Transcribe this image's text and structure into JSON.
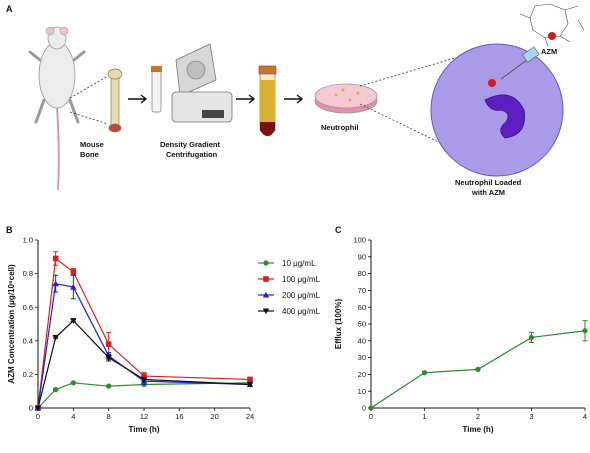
{
  "panels": {
    "a": {
      "letter": "A",
      "labels": {
        "mouse_bone": [
          "Mouse",
          "Bone"
        ],
        "density_gradient": [
          "Density Gradient",
          "Centrifugation"
        ],
        "neutrophil": "Neutrophil",
        "loaded": [
          "Neutrophil Loaded",
          "with AZM"
        ],
        "azm": "AZM"
      },
      "colors": {
        "bone": "#e8d9b0",
        "tube_cap": "#c8742a",
        "tube_fill": "#d9b234",
        "blood": "#7a1010",
        "dish": "#e88fa6",
        "cell": "#a99be8",
        "nucleus": "#5b1fc2",
        "azm_dot": "#d11b1b"
      },
      "icons": [
        "mouse-icon",
        "bone-icon",
        "centrifuge-icon",
        "tube-icon",
        "petri-dish-icon",
        "neutrophil-icon",
        "molecule-icon",
        "needle-icon"
      ]
    },
    "b": {
      "letter": "B"
    },
    "c": {
      "letter": "C"
    }
  },
  "chart_data": [
    {
      "id": "b",
      "type": "line",
      "xlabel": "Time (h)",
      "ylabel": "AZM Concentration (μg/10⁶cell)",
      "x_ticks": [
        0,
        4,
        8,
        12,
        16,
        20,
        24
      ],
      "y_ticks": [
        0.0,
        0.2,
        0.4,
        0.6,
        0.8,
        1.0
      ],
      "y_tick_labels": [
        "0",
        "0.2",
        "0.4",
        "0.6",
        "0.8",
        "1.0"
      ],
      "xlim": [
        0,
        24
      ],
      "ylim": [
        0,
        1.0
      ],
      "grid": false,
      "legend_position": "top-right",
      "series": [
        {
          "name": "10 μg/mL",
          "color": "#2e8b2e",
          "marker": "circle",
          "x": [
            0,
            2,
            4,
            8,
            12,
            24
          ],
          "y": [
            0.0,
            0.11,
            0.15,
            0.13,
            0.14,
            0.15
          ],
          "err": [
            0,
            0.005,
            0.005,
            0.005,
            0.005,
            0.005
          ]
        },
        {
          "name": "100 μg/mL",
          "color": "#d42020",
          "marker": "square",
          "x": [
            0,
            2,
            4,
            8,
            12,
            24
          ],
          "y": [
            0.0,
            0.89,
            0.81,
            0.38,
            0.19,
            0.17
          ],
          "err": [
            0,
            0.04,
            0.02,
            0.07,
            0.02,
            0.01
          ]
        },
        {
          "name": "200 μg/mL",
          "color": "#2020d8",
          "marker": "triangle-up",
          "x": [
            0,
            2,
            4,
            8,
            12,
            24
          ],
          "y": [
            0.0,
            0.74,
            0.72,
            0.31,
            0.16,
            0.14
          ],
          "err": [
            0,
            0.05,
            0.07,
            0.02,
            0.02,
            0.01
          ]
        },
        {
          "name": "400 μg/mL",
          "color": "#111111",
          "marker": "triangle-down",
          "x": [
            0,
            2,
            4,
            8,
            12,
            24
          ],
          "y": [
            0.0,
            0.42,
            0.52,
            0.3,
            0.17,
            0.14
          ],
          "err": [
            0,
            0.005,
            0.005,
            0.02,
            0.01,
            0.01
          ]
        }
      ]
    },
    {
      "id": "c",
      "type": "line",
      "xlabel": "Time (h)",
      "ylabel": "Efflux (100%)",
      "x_ticks": [
        0,
        1,
        2,
        3,
        4
      ],
      "y_ticks": [
        0,
        10,
        20,
        30,
        40,
        50,
        60,
        70,
        80,
        90,
        100
      ],
      "xlim": [
        0,
        4
      ],
      "ylim": [
        0,
        100
      ],
      "grid": false,
      "series": [
        {
          "color": "#2e8b2e",
          "marker": "circle",
          "x": [
            0,
            1,
            2,
            3,
            4
          ],
          "y": [
            0,
            21,
            23,
            42,
            46
          ],
          "err": [
            0,
            0.5,
            0.5,
            3,
            6
          ]
        }
      ]
    }
  ]
}
